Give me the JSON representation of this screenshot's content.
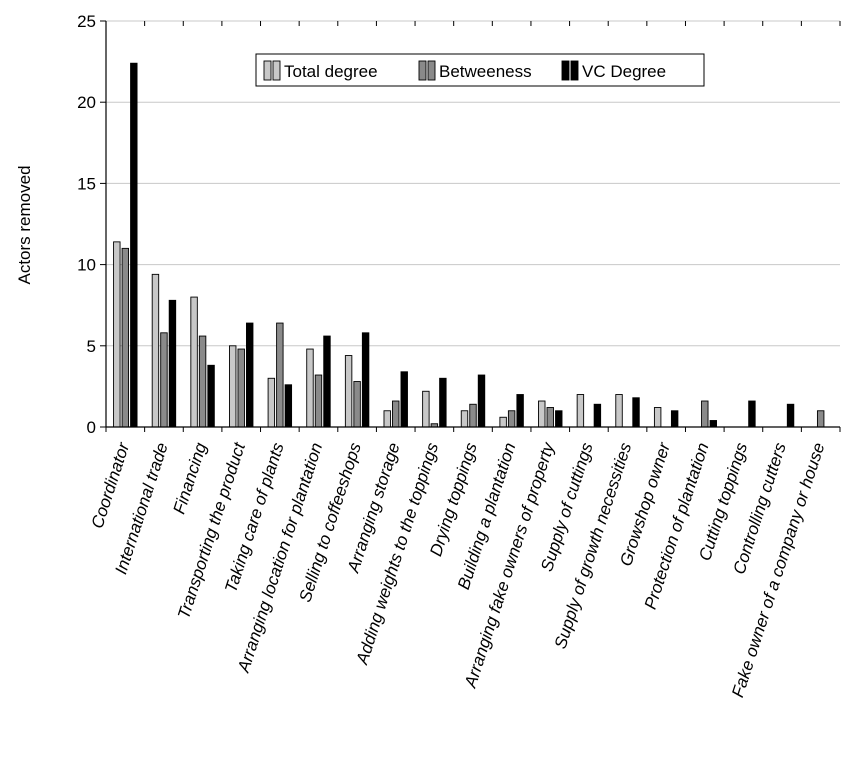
{
  "chart_data": {
    "type": "bar",
    "title": "",
    "xlabel": "",
    "ylabel": "Actors removed",
    "ylim": [
      0,
      25
    ],
    "yticks": [
      0,
      5,
      10,
      15,
      20,
      25
    ],
    "grid": "horizontal",
    "legend_position": "top-center",
    "categories": [
      "Coordinator",
      "International trade",
      "Financing",
      "Transporting the product",
      "Taking care of plants",
      "Arranging location for plantation",
      "Selling to coffeeshops",
      "Arranging storage",
      "Adding weights to the toppings",
      "Drying toppings",
      "Building a plantation",
      "Arranging fake owners of property",
      "Supply of cuttings",
      "Supply of growth necessities",
      "Growshop owner",
      "Protection of plantation",
      "Cutting toppings",
      "Controlling cutters",
      "Fake owner of a company or house"
    ],
    "series": [
      {
        "name": "Total degree",
        "color": "#c8c8c8",
        "values": [
          11.4,
          9.4,
          8.0,
          5.0,
          3.0,
          4.8,
          4.4,
          1.0,
          2.2,
          1.0,
          0.6,
          1.6,
          2.0,
          2.0,
          1.2,
          0,
          0,
          0,
          0
        ]
      },
      {
        "name": "Betweeness",
        "color": "#8a8a8a",
        "values": [
          11.0,
          5.8,
          5.6,
          4.8,
          6.4,
          3.2,
          2.8,
          1.6,
          0.2,
          1.4,
          1.0,
          1.2,
          0,
          0,
          0,
          1.6,
          0,
          0,
          1.0
        ]
      },
      {
        "name": "VC Degree",
        "color": "#000000",
        "values": [
          22.4,
          7.8,
          3.8,
          6.4,
          2.6,
          5.6,
          5.8,
          3.4,
          3.0,
          3.2,
          2.0,
          1.0,
          1.4,
          1.8,
          1.0,
          0.4,
          1.6,
          1.4,
          0
        ]
      }
    ]
  }
}
